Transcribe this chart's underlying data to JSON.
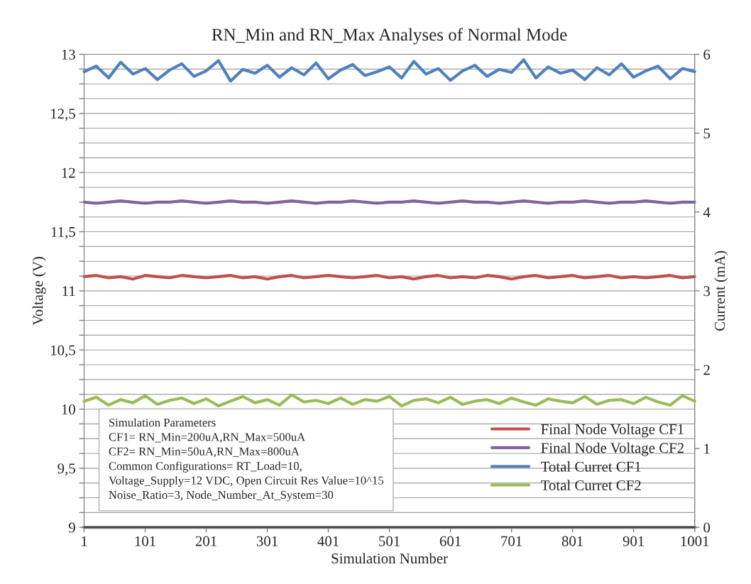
{
  "chart_data": {
    "type": "line",
    "title": "RN_Min and RN_Max Analyses of Normal Mode",
    "xlabel": "Simulation Number",
    "ylabel": "Voltage (V)",
    "y2label": "Current (mA)",
    "x": [
      1,
      21,
      41,
      61,
      81,
      101,
      121,
      141,
      161,
      181,
      201,
      221,
      241,
      261,
      281,
      301,
      321,
      341,
      361,
      381,
      401,
      421,
      441,
      461,
      481,
      501,
      521,
      541,
      561,
      581,
      601,
      621,
      641,
      661,
      681,
      701,
      721,
      741,
      761,
      781,
      801,
      821,
      841,
      861,
      881,
      901,
      921,
      941,
      961,
      981,
      1001
    ],
    "xlim": [
      1,
      1001
    ],
    "xticks": [
      1,
      101,
      201,
      301,
      401,
      501,
      601,
      701,
      801,
      901,
      1001
    ],
    "ylim": [
      9,
      13
    ],
    "yticks": [
      9,
      {
        "value": 9.125,
        "label": null
      },
      {
        "value": 9.25,
        "label": null
      },
      {
        "value": 9.375,
        "label": null
      },
      {
        "value": 9.5,
        "label": "9,5"
      },
      {
        "value": 9.625,
        "label": null
      },
      {
        "value": 9.75,
        "label": null
      },
      {
        "value": 9.875,
        "label": null
      },
      10,
      {
        "value": 10.125,
        "label": null
      },
      {
        "value": 10.25,
        "label": null
      },
      {
        "value": 10.375,
        "label": null
      },
      {
        "value": 10.5,
        "label": "10,5"
      },
      {
        "value": 10.625,
        "label": null
      },
      {
        "value": 10.75,
        "label": null
      },
      {
        "value": 10.875,
        "label": null
      },
      11,
      {
        "value": 11.125,
        "label": null
      },
      {
        "value": 11.25,
        "label": null
      },
      {
        "value": 11.375,
        "label": null
      },
      {
        "value": 11.5,
        "label": "11,5"
      },
      {
        "value": 11.625,
        "label": null
      },
      {
        "value": 11.75,
        "label": null
      },
      {
        "value": 11.875,
        "label": null
      },
      12,
      {
        "value": 12.125,
        "label": null
      },
      {
        "value": 12.25,
        "label": null
      },
      {
        "value": 12.375,
        "label": null
      },
      {
        "value": 12.5,
        "label": "12,5"
      },
      {
        "value": 12.625,
        "label": null
      },
      {
        "value": 12.75,
        "label": null
      },
      {
        "value": 12.875,
        "label": null
      },
      13
    ],
    "y2lim": [
      0,
      6
    ],
    "y2ticks": [
      0,
      1,
      2,
      3,
      4,
      5,
      6
    ],
    "grid": "y",
    "legend": "bottom right",
    "series": [
      {
        "name": "Final Node Voltage CF1",
        "color": "#c0504d",
        "values": [
          11.12,
          11.13,
          11.11,
          11.12,
          11.1,
          11.13,
          11.12,
          11.11,
          11.13,
          11.12,
          11.11,
          11.12,
          11.13,
          11.11,
          11.12,
          11.1,
          11.12,
          11.13,
          11.11,
          11.12,
          11.13,
          11.12,
          11.11,
          11.12,
          11.13,
          11.11,
          11.12,
          11.1,
          11.12,
          11.13,
          11.11,
          11.12,
          11.11,
          11.13,
          11.12,
          11.1,
          11.12,
          11.13,
          11.11,
          11.12,
          11.13,
          11.11,
          11.12,
          11.13,
          11.11,
          11.12,
          11.11,
          11.12,
          11.13,
          11.11,
          11.12
        ]
      },
      {
        "name": "Final Node Voltage CF2",
        "color": "#8064a2",
        "values": [
          11.75,
          11.74,
          11.75,
          11.76,
          11.75,
          11.74,
          11.75,
          11.75,
          11.76,
          11.75,
          11.74,
          11.75,
          11.76,
          11.75,
          11.75,
          11.74,
          11.75,
          11.76,
          11.75,
          11.74,
          11.75,
          11.75,
          11.76,
          11.75,
          11.74,
          11.75,
          11.75,
          11.76,
          11.75,
          11.74,
          11.75,
          11.76,
          11.75,
          11.75,
          11.74,
          11.75,
          11.76,
          11.75,
          11.74,
          11.75,
          11.75,
          11.76,
          11.75,
          11.74,
          11.75,
          11.75,
          11.76,
          11.75,
          11.74,
          11.75,
          11.75
        ]
      },
      {
        "name": "Total Curret CF1",
        "color": "#4f81bd",
        "axis": "y2",
        "values": [
          5.78,
          5.85,
          5.7,
          5.9,
          5.75,
          5.82,
          5.68,
          5.8,
          5.88,
          5.72,
          5.79,
          5.92,
          5.66,
          5.81,
          5.76,
          5.86,
          5.71,
          5.83,
          5.74,
          5.89,
          5.69,
          5.8,
          5.87,
          5.73,
          5.78,
          5.84,
          5.7,
          5.91,
          5.75,
          5.82,
          5.67,
          5.79,
          5.86,
          5.72,
          5.81,
          5.77,
          5.93,
          5.7,
          5.84,
          5.76,
          5.8,
          5.68,
          5.83,
          5.74,
          5.88,
          5.71,
          5.79,
          5.85,
          5.69,
          5.82,
          5.78
        ]
      },
      {
        "name": "Total Curret CF2",
        "color": "#9bbb59",
        "axis": "y2",
        "values": [
          1.6,
          1.65,
          1.55,
          1.62,
          1.58,
          1.67,
          1.56,
          1.61,
          1.64,
          1.57,
          1.63,
          1.54,
          1.6,
          1.66,
          1.58,
          1.62,
          1.55,
          1.68,
          1.59,
          1.61,
          1.57,
          1.64,
          1.56,
          1.62,
          1.6,
          1.66,
          1.54,
          1.61,
          1.63,
          1.58,
          1.65,
          1.56,
          1.6,
          1.62,
          1.57,
          1.64,
          1.59,
          1.55,
          1.63,
          1.6,
          1.58,
          1.66,
          1.56,
          1.61,
          1.62,
          1.57,
          1.65,
          1.59,
          1.55,
          1.67,
          1.6
        ]
      }
    ],
    "annotations": [
      "Simulation Parameters\nCF1= RN_Min=200uA,RN_Max=500uA\nCF2= RN_Min=50uA,RN_Max=800uA\nCommon Configurations= RT_Load=10,\nVoltage_Supply=12 VDC, Open Circuit Res Value=10^15\nNoise_Ratio=3, Node_Number_At_System=30"
    ]
  }
}
